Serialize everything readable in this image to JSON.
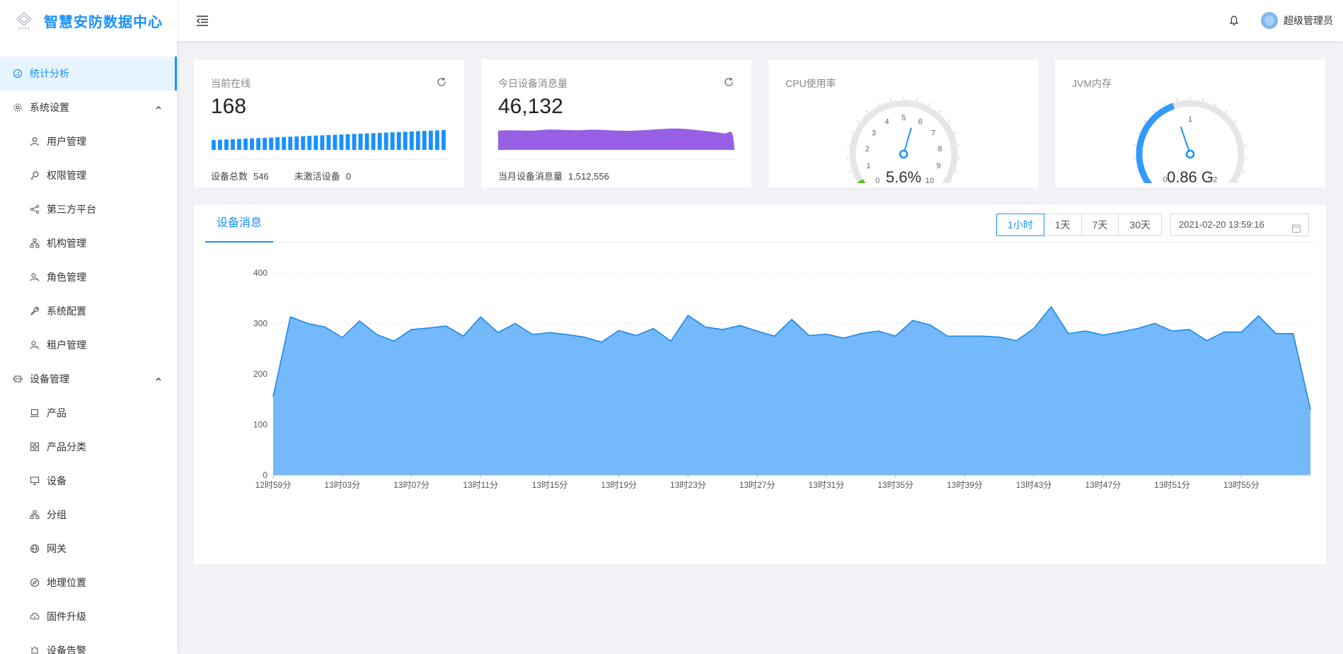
{
  "app": {
    "title": "智慧安防数据中心"
  },
  "header": {
    "user_name": "超级管理员"
  },
  "sidebar": {
    "items": [
      {
        "label": "统计分析",
        "icon": "dashboard-icon",
        "level": "top",
        "active": true
      },
      {
        "label": "系统设置",
        "icon": "gear-icon",
        "level": "top",
        "expanded": true
      },
      {
        "label": "用户管理",
        "icon": "user-icon",
        "level": "sub"
      },
      {
        "label": "权限管理",
        "icon": "key-icon",
        "level": "sub"
      },
      {
        "label": "第三方平台",
        "icon": "share-icon",
        "level": "sub"
      },
      {
        "label": "机构管理",
        "icon": "org-icon",
        "level": "sub"
      },
      {
        "label": "角色管理",
        "icon": "role-icon",
        "level": "sub"
      },
      {
        "label": "系统配置",
        "icon": "wrench-icon",
        "level": "sub"
      },
      {
        "label": "租户管理",
        "icon": "tenant-icon",
        "level": "sub"
      },
      {
        "label": "设备管理",
        "icon": "device-icon",
        "level": "top",
        "expanded": true
      },
      {
        "label": "产品",
        "icon": "laptop-icon",
        "level": "sub"
      },
      {
        "label": "产品分类",
        "icon": "grid-icon",
        "level": "sub"
      },
      {
        "label": "设备",
        "icon": "monitor-icon",
        "level": "sub"
      },
      {
        "label": "分组",
        "icon": "cluster-icon",
        "level": "sub"
      },
      {
        "label": "网关",
        "icon": "globe-icon",
        "level": "sub"
      },
      {
        "label": "地理位置",
        "icon": "compass-icon",
        "level": "sub"
      },
      {
        "label": "固件升级",
        "icon": "cloud-icon",
        "level": "sub"
      },
      {
        "label": "设备告警",
        "icon": "alarm-icon",
        "level": "sub"
      }
    ]
  },
  "cards": {
    "online": {
      "label": "当前在线",
      "value": "168",
      "total_label": "设备总数",
      "total_value": "546",
      "inactive_label": "未激活设备",
      "inactive_value": "0",
      "bar_color": "#1890ff"
    },
    "messages": {
      "label": "今日设备消息量",
      "value": "46,132",
      "month_label": "当月设备消息量",
      "month_value": "1,512,556",
      "area_color": "#975fe4"
    },
    "cpu": {
      "label": "CPU使用率",
      "value_text": "5.6%",
      "value": 5.6,
      "min": 0,
      "max": 10,
      "ticks": [
        "0",
        "1",
        "2",
        "3",
        "4",
        "5",
        "6",
        "7",
        "8",
        "9",
        "10"
      ]
    },
    "jvm": {
      "label": "JVM内存",
      "value_text": "0.86 G",
      "value": 0.86,
      "min": 0,
      "max": 2,
      "ticks": [
        "0",
        "1",
        "2"
      ]
    }
  },
  "chart_panel": {
    "tab_label": "设备消息",
    "ranges": [
      "1小时",
      "1天",
      "7天",
      "30天"
    ],
    "active_range": "1小时",
    "date_value": "2021-02-20 13:59:16"
  },
  "colors": {
    "accent": "#1890ff",
    "area_fill": "#74b9fb",
    "area_line": "#1e88e5",
    "gauge_track": "#e6e6e6",
    "cpu_low": "#52c41a"
  },
  "chart_data": {
    "type": "area",
    "title": "",
    "xlabel": "",
    "ylabel": "",
    "ylim": [
      0,
      400
    ],
    "yticks": [
      0,
      100,
      200,
      300,
      400
    ],
    "xtick_labels": [
      "12时59分",
      "13时03分",
      "13时07分",
      "13时11分",
      "13时15分",
      "13时19分",
      "13时23分",
      "13时27分",
      "13时31分",
      "13时35分",
      "13时39分",
      "13时43分",
      "13时47分",
      "13时51分",
      "13时55分"
    ],
    "grid": true,
    "series": [
      {
        "values": [
          155,
          313,
          300,
          293,
          272,
          305,
          278,
          265,
          288,
          291,
          295,
          275,
          313,
          282,
          300,
          278,
          282,
          278,
          273,
          263,
          286,
          276,
          290,
          265,
          316,
          293,
          288,
          296,
          285,
          275,
          308,
          276,
          279,
          271,
          280,
          285,
          275,
          306,
          297,
          275,
          275,
          275,
          273,
          266,
          290,
          333,
          280,
          285,
          277,
          283,
          290,
          300,
          285,
          288,
          266,
          283,
          283,
          315,
          280,
          280,
          130
        ]
      }
    ]
  }
}
